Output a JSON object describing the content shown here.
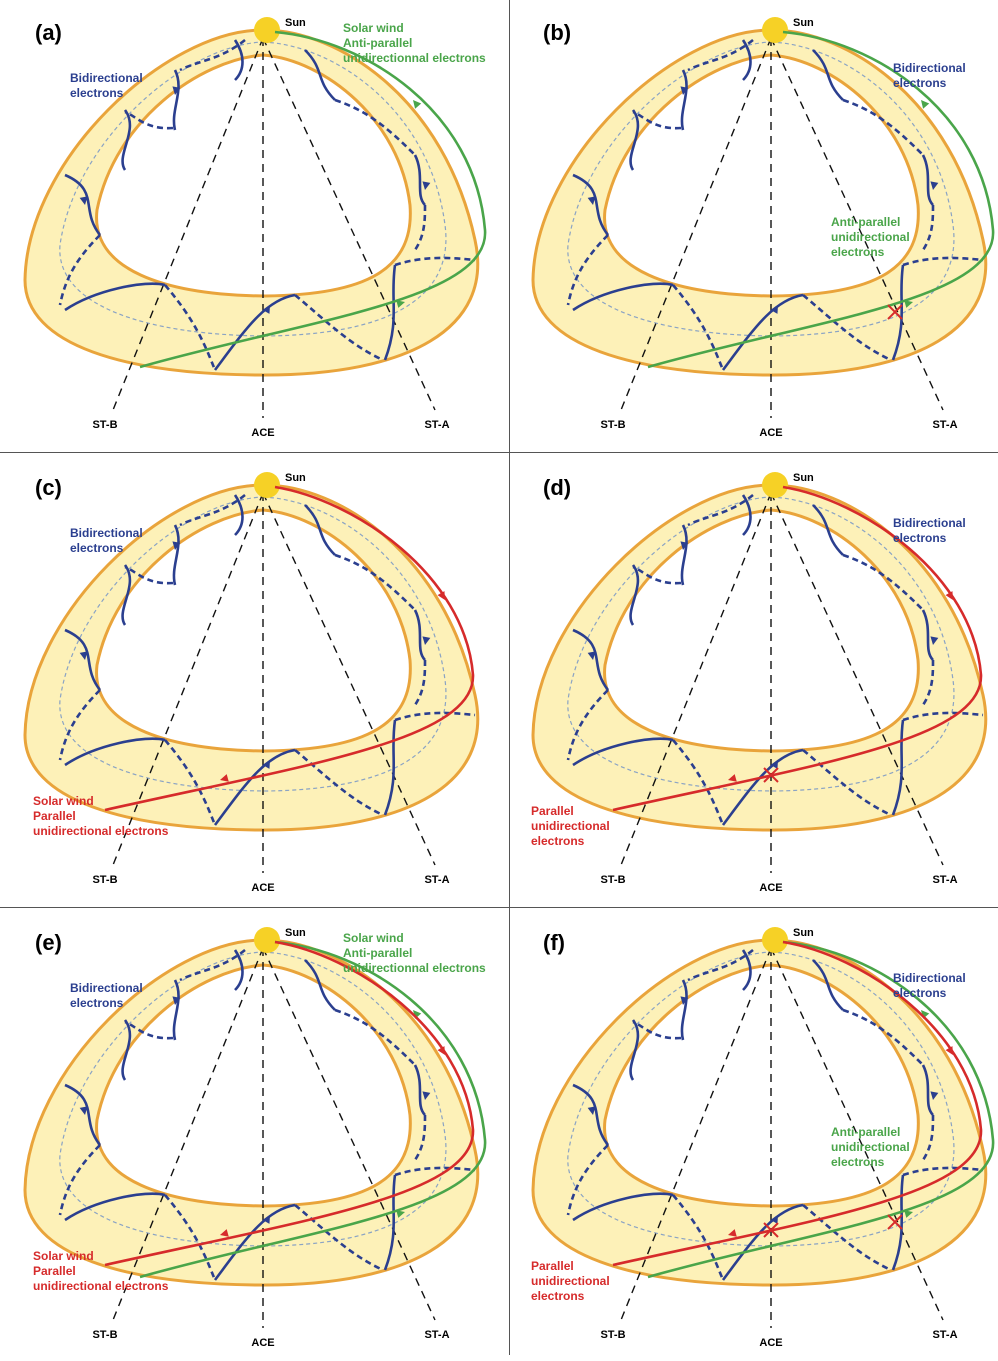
{
  "colors": {
    "band_fill": "#fdf1b8",
    "band_stroke": "#e9a43b",
    "sun": "#f6d126",
    "blue": "#2b3f8f",
    "green": "#4aa54a",
    "red": "#d62b2b",
    "dash": "#111111",
    "inner_dash": "#8aa3c4"
  },
  "common": {
    "sun_label": "Sun",
    "st_b": "ST-B",
    "ace": "ACE",
    "st_a": "ST-A"
  },
  "panels": [
    {
      "letter": "(a)",
      "labels": {
        "bidir": [
          "Bidirectional",
          "electrons"
        ],
        "green": [
          "Solar wind",
          "Anti-parallel",
          "unidirectionnal electrons"
        ]
      }
    },
    {
      "letter": "(b)",
      "labels": {
        "bidir": [
          "Bidirectional",
          "electrons"
        ],
        "green": [
          "Anti-parallel",
          "unidirectional",
          "electrons"
        ]
      }
    },
    {
      "letter": "(c)",
      "labels": {
        "bidir": [
          "Bidirectional",
          "electrons"
        ],
        "red": [
          "Solar wind",
          "Parallel",
          "unidirectional electrons"
        ]
      }
    },
    {
      "letter": "(d)",
      "labels": {
        "bidir": [
          "Bidirectional",
          "electrons"
        ],
        "red": [
          "Parallel",
          "unidirectional",
          "electrons"
        ]
      }
    },
    {
      "letter": "(e)",
      "labels": {
        "bidir": [
          "Bidirectional",
          "electrons"
        ],
        "green": [
          "Solar wind",
          "Anti-parallel",
          "unidirectionnal electrons"
        ],
        "red": [
          "Solar wind",
          "Parallel",
          "unidirectional electrons"
        ]
      }
    },
    {
      "letter": "(f)",
      "labels": {
        "bidir": [
          "Bidirectional",
          "electrons"
        ],
        "green": [
          "Anti-parallel",
          "unidirectional",
          "electrons"
        ],
        "red": [
          "Parallel",
          "unidirectional",
          "electrons"
        ]
      }
    }
  ]
}
